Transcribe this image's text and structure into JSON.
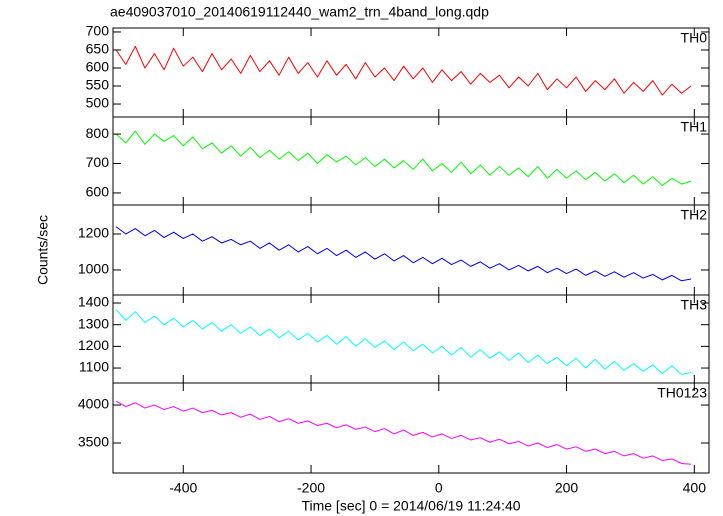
{
  "chart_data": {
    "type": "line",
    "title": "ae409037010_20140619112440_wam2_trn_4band_long.qdp",
    "xlabel": "Time [sec] 0 = 2014/06/19 11:24:40",
    "ylabel": "Counts/sec",
    "xlim": [
      -510,
      423
    ],
    "xticks": [
      -400,
      -200,
      0,
      200,
      400
    ],
    "x": [
      -505,
      -490,
      -475,
      -460,
      -445,
      -430,
      -415,
      -400,
      -385,
      -370,
      -355,
      -340,
      -325,
      -310,
      -295,
      -280,
      -265,
      -250,
      -235,
      -220,
      -205,
      -190,
      -175,
      -160,
      -145,
      -130,
      -115,
      -100,
      -85,
      -70,
      -55,
      -40,
      -25,
      -10,
      5,
      20,
      35,
      50,
      65,
      80,
      95,
      110,
      125,
      140,
      155,
      170,
      185,
      200,
      215,
      230,
      245,
      260,
      275,
      290,
      305,
      320,
      335,
      350,
      365,
      380,
      395
    ],
    "series": [
      {
        "name": "TH0",
        "color": "#ff0000",
        "ylim": [
          464,
          711
        ],
        "yticks": [
          500,
          550,
          600,
          650,
          700
        ],
        "values": [
          650,
          610,
          660,
          600,
          640,
          595,
          655,
          605,
          630,
          590,
          640,
          595,
          625,
          585,
          635,
          590,
          620,
          580,
          630,
          585,
          615,
          575,
          620,
          580,
          610,
          570,
          615,
          575,
          600,
          565,
          605,
          570,
          600,
          560,
          595,
          565,
          590,
          555,
          585,
          560,
          580,
          545,
          575,
          550,
          585,
          540,
          570,
          545,
          575,
          535,
          565,
          540,
          570,
          530,
          560,
          535,
          565,
          525,
          555,
          530,
          550
        ]
      },
      {
        "name": "TH1",
        "color": "#00ff00",
        "ylim": [
          559,
          858
        ],
        "yticks": [
          600,
          700,
          800
        ],
        "values": [
          800,
          770,
          810,
          765,
          800,
          775,
          795,
          760,
          790,
          750,
          770,
          735,
          760,
          725,
          755,
          720,
          745,
          715,
          740,
          710,
          735,
          700,
          730,
          705,
          725,
          695,
          720,
          690,
          715,
          685,
          710,
          680,
          715,
          675,
          700,
          670,
          705,
          665,
          695,
          660,
          690,
          660,
          685,
          655,
          690,
          650,
          680,
          650,
          675,
          645,
          670,
          640,
          665,
          635,
          660,
          630,
          655,
          625,
          650,
          630,
          640
        ]
      },
      {
        "name": "TH2",
        "color": "#0000ff",
        "ylim": [
          861,
          1361
        ],
        "yticks": [
          1000,
          1200
        ],
        "values": [
          1240,
          1200,
          1230,
          1190,
          1220,
          1180,
          1210,
          1175,
          1200,
          1160,
          1185,
          1150,
          1170,
          1140,
          1160,
          1120,
          1150,
          1110,
          1140,
          1100,
          1130,
          1090,
          1120,
          1080,
          1110,
          1070,
          1100,
          1060,
          1090,
          1050,
          1080,
          1040,
          1070,
          1035,
          1065,
          1030,
          1055,
          1020,
          1045,
          1010,
          1035,
          1000,
          1025,
          995,
          1020,
          985,
          1010,
          980,
          1005,
          970,
          995,
          965,
          990,
          960,
          985,
          955,
          975,
          945,
          970,
          940,
          950
        ]
      },
      {
        "name": "TH3",
        "color": "#00ffff",
        "ylim": [
          1031,
          1437
        ],
        "yticks": [
          1100,
          1200,
          1300,
          1400
        ],
        "values": [
          1370,
          1320,
          1360,
          1310,
          1340,
          1300,
          1330,
          1290,
          1320,
          1280,
          1310,
          1270,
          1300,
          1260,
          1290,
          1250,
          1280,
          1240,
          1270,
          1230,
          1260,
          1220,
          1250,
          1210,
          1245,
          1200,
          1235,
          1195,
          1225,
          1185,
          1220,
          1180,
          1210,
          1170,
          1200,
          1160,
          1195,
          1150,
          1185,
          1145,
          1175,
          1135,
          1170,
          1125,
          1160,
          1120,
          1150,
          1110,
          1145,
          1100,
          1140,
          1095,
          1130,
          1090,
          1120,
          1085,
          1115,
          1075,
          1110,
          1070,
          1080
        ]
      },
      {
        "name": "TH0123",
        "color": "#ff00ff",
        "ylim": [
          3105,
          4290
        ],
        "yticks": [
          3500,
          4000
        ],
        "values": [
          4050,
          3980,
          4030,
          3960,
          4000,
          3940,
          3980,
          3920,
          3960,
          3900,
          3930,
          3870,
          3900,
          3840,
          3880,
          3810,
          3850,
          3780,
          3820,
          3760,
          3790,
          3730,
          3760,
          3700,
          3740,
          3680,
          3710,
          3650,
          3690,
          3620,
          3670,
          3600,
          3640,
          3580,
          3620,
          3560,
          3600,
          3540,
          3570,
          3510,
          3550,
          3490,
          3520,
          3460,
          3500,
          3440,
          3480,
          3420,
          3450,
          3390,
          3420,
          3360,
          3390,
          3330,
          3360,
          3300,
          3330,
          3270,
          3290,
          3230,
          3220
        ]
      }
    ]
  }
}
